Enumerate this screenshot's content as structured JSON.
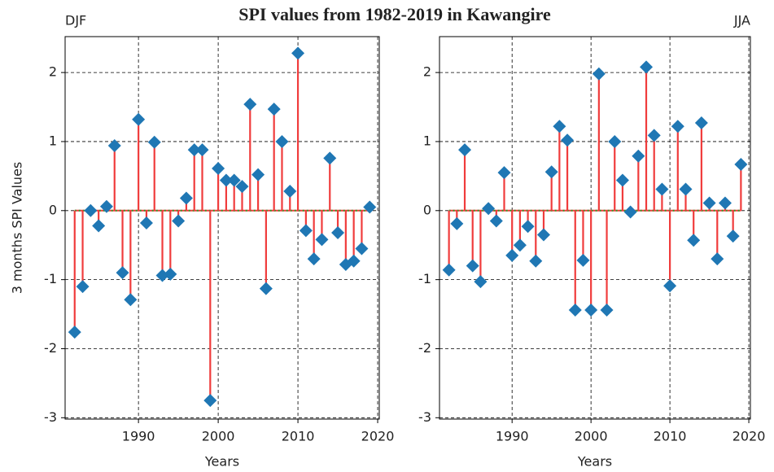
{
  "title": "SPI values from 1982-2019 in Kawangire",
  "chart_data": [
    {
      "type": "stem",
      "title": "DJF",
      "xlabel": "Years",
      "ylabel": "3 months SPI Values",
      "x": [
        1982,
        1983,
        1984,
        1985,
        1986,
        1987,
        1988,
        1989,
        1990,
        1991,
        1992,
        1993,
        1994,
        1995,
        1996,
        1997,
        1998,
        1999,
        2000,
        2001,
        2002,
        2003,
        2004,
        2005,
        2006,
        2007,
        2008,
        2009,
        2010,
        2011,
        2012,
        2013,
        2014,
        2015,
        2016,
        2017,
        2018,
        2019
      ],
      "values": [
        -1.76,
        -1.1,
        0.0,
        -0.22,
        0.06,
        0.94,
        -0.9,
        -1.29,
        1.32,
        -0.18,
        0.99,
        -0.94,
        -0.92,
        -0.15,
        0.18,
        0.88,
        0.88,
        -2.75,
        0.61,
        0.44,
        0.44,
        0.35,
        1.54,
        0.52,
        -1.13,
        1.47,
        1.0,
        0.28,
        2.28,
        -0.29,
        -0.7,
        -0.42,
        0.76,
        -0.32,
        -0.78,
        -0.73,
        -0.55,
        0.05
      ],
      "xlim": [
        1980.8,
        2020.2
      ],
      "xticks": [
        1990,
        2000,
        2010,
        2020
      ],
      "ylim": [
        -3.02,
        2.52
      ],
      "yticks": [
        -3,
        -2,
        -1,
        0,
        1,
        2
      ],
      "grid": true,
      "stem_color": "#f03c3c",
      "marker_color": "#1f77b4",
      "baseline_color": "#2ca02c"
    },
    {
      "type": "stem",
      "title": "JJA",
      "xlabel": "Years",
      "x": [
        1982,
        1983,
        1984,
        1985,
        1986,
        1987,
        1988,
        1989,
        1990,
        1991,
        1992,
        1993,
        1994,
        1995,
        1996,
        1997,
        1998,
        1999,
        2000,
        2001,
        2002,
        2003,
        2004,
        2005,
        2006,
        2007,
        2008,
        2009,
        2010,
        2011,
        2012,
        2013,
        2014,
        2015,
        2016,
        2017,
        2018,
        2019
      ],
      "values": [
        -0.86,
        -0.19,
        0.88,
        -0.8,
        -1.03,
        0.03,
        -0.15,
        0.55,
        -0.65,
        -0.5,
        -0.23,
        -0.73,
        -0.35,
        0.56,
        1.22,
        1.02,
        -1.44,
        -0.72,
        -1.44,
        1.98,
        -1.44,
        1.0,
        0.44,
        -0.02,
        0.79,
        2.08,
        1.09,
        0.31,
        -1.09,
        1.22,
        0.31,
        -0.43,
        1.27,
        0.11,
        -0.7,
        0.11,
        -0.37,
        0.67
      ],
      "xlim": [
        1980.8,
        2020.2
      ],
      "xticks": [
        1990,
        2000,
        2010,
        2020
      ],
      "ylim": [
        -3.02,
        2.52
      ],
      "yticks": [
        -3,
        -2,
        -1,
        0,
        1,
        2
      ],
      "grid": true,
      "stem_color": "#f03c3c",
      "marker_color": "#1f77b4",
      "baseline_color": "#2ca02c"
    }
  ]
}
